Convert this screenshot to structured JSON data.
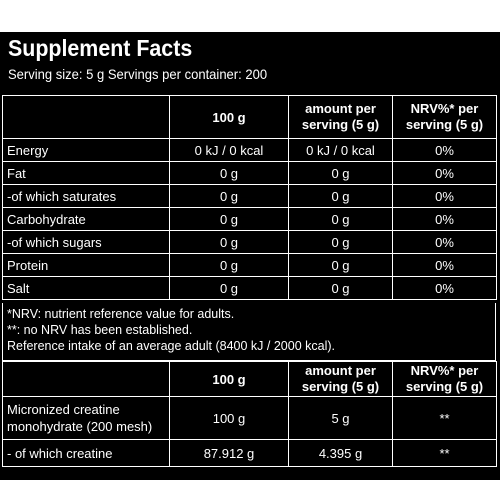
{
  "title": "Supplement Facts",
  "serving": "Serving size: 5 g Servings per container: 200",
  "table1": {
    "headers": [
      "",
      "100 g",
      "amount per serving (5 g)",
      "NRV%* per serving (5 g)"
    ],
    "rows": [
      {
        "label": "Energy",
        "per100": "0 kJ / 0 kcal",
        "perServing": "0 kJ / 0 kcal",
        "nrv": "0%"
      },
      {
        "label": "Fat",
        "per100": "0 g",
        "perServing": "0 g",
        "nrv": "0%"
      },
      {
        "label": "-of which saturates",
        "per100": "0 g",
        "perServing": "0 g",
        "nrv": "0%"
      },
      {
        "label": "Carbohydrate",
        "per100": "0 g",
        "perServing": "0 g",
        "nrv": "0%"
      },
      {
        "label": "-of which sugars",
        "per100": "0 g",
        "perServing": "0 g",
        "nrv": "0%"
      },
      {
        "label": "Protein",
        "per100": "0 g",
        "perServing": "0 g",
        "nrv": "0%"
      },
      {
        "label": "Salt",
        "per100": "0 g",
        "perServing": "0 g",
        "nrv": "0%"
      }
    ]
  },
  "notes": [
    "*NRV: nutrient reference value for adults.",
    "**: no NRV has been established.",
    "Reference intake of an average adult (8400 kJ / 2000 kcal)."
  ],
  "table2": {
    "headers": [
      "",
      "100 g",
      "amount per serving (5 g)",
      "NRV%* per serving (5 g)"
    ],
    "rows": [
      {
        "label": "Micronized creatine monohydrate (200 mesh)",
        "per100": "100 g",
        "perServing": "5 g",
        "nrv": "**"
      },
      {
        "label": "- of which creatine",
        "per100": "87.912 g",
        "perServing": "4.395 g",
        "nrv": "**"
      }
    ]
  }
}
